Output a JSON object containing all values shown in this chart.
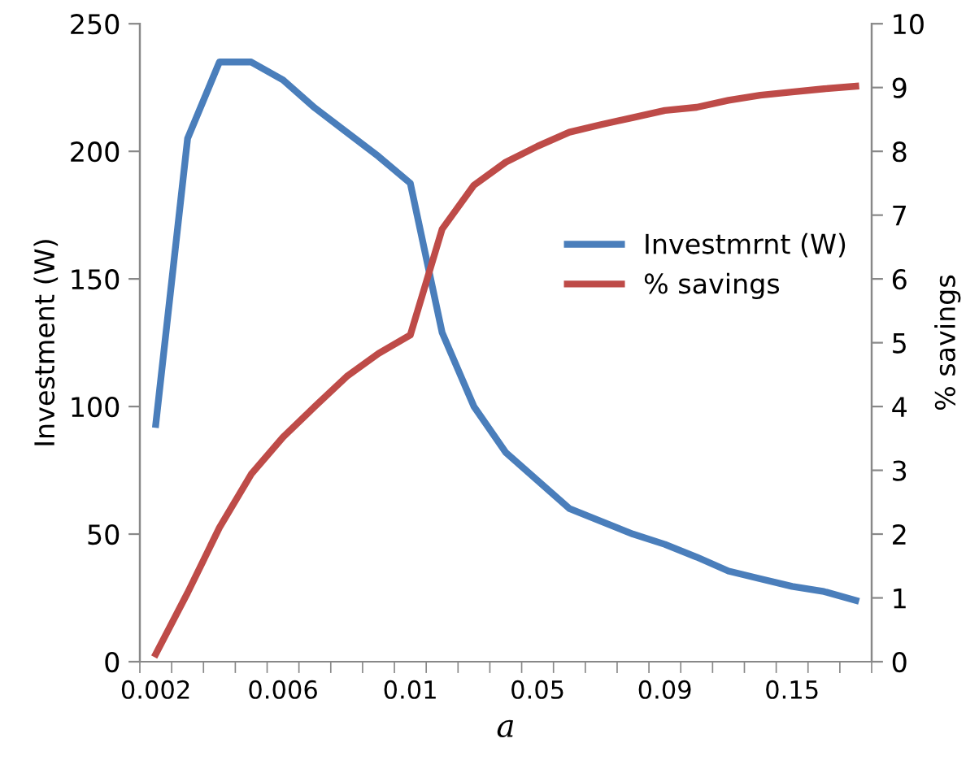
{
  "chart_data": {
    "type": "line",
    "xlabel": "a",
    "ylabel": "Investment (W)",
    "y2label": "% savings",
    "categories": [
      "0.002",
      null,
      null,
      null,
      "0.006",
      null,
      null,
      null,
      "0.01",
      null,
      null,
      null,
      "0.05",
      null,
      null,
      null,
      "0.09",
      null,
      null,
      null,
      "0.15",
      null,
      null
    ],
    "series": [
      {
        "name": "Investmrnt (W)",
        "color": "#4a7ebb",
        "values": [
          93,
          205,
          235,
          235,
          228,
          217,
          207.5,
          198,
          187.5,
          129,
          100,
          82,
          71,
          60,
          55,
          50,
          46,
          41,
          35.5,
          32.5,
          29.5,
          27.5,
          24
        ]
      },
      {
        "name": "% savings",
        "color": "#be4b48",
        "axis": "y2",
        "values": [
          0.12,
          1.08,
          2.1,
          2.94,
          3.52,
          4.0,
          4.47,
          4.83,
          5.12,
          6.78,
          7.47,
          7.83,
          8.08,
          8.3,
          8.42,
          8.53,
          8.64,
          8.69,
          8.8,
          8.88,
          8.93,
          8.98,
          9.02
        ]
      }
    ],
    "ylim": [
      0,
      250
    ],
    "yticks": [
      0,
      50,
      100,
      150,
      200,
      250
    ],
    "y2lim": [
      0,
      10
    ],
    "y2ticks": [
      0,
      1,
      2,
      3,
      4,
      5,
      6,
      7,
      8,
      9,
      10
    ],
    "grid": false,
    "legend": "right",
    "marker": "none",
    "line_style": "solid"
  }
}
